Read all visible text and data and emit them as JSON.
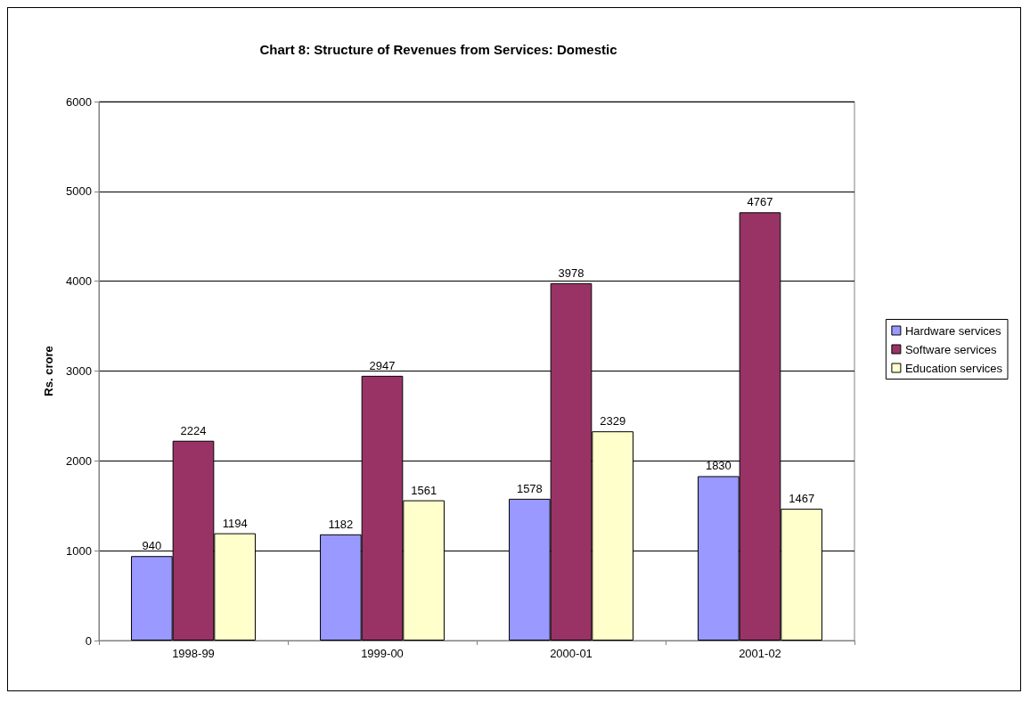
{
  "chart_data": {
    "type": "bar",
    "title": "Chart 8: Structure of Revenues from Services: Domestic",
    "ylabel": "Rs. crore",
    "categories": [
      "1998-99",
      "1999-00",
      "2000-01",
      "2001-02"
    ],
    "series": [
      {
        "name": "Hardware services",
        "color": "#9999ff",
        "values": [
          940,
          1182,
          1578,
          1830
        ]
      },
      {
        "name": "Software services",
        "color": "#993366",
        "values": [
          2224,
          2947,
          3978,
          4767
        ]
      },
      {
        "name": "Education services",
        "color": "#ffffcc",
        "values": [
          1194,
          1561,
          2329,
          1467
        ]
      }
    ],
    "ylim": [
      0,
      6000
    ],
    "yticks": [
      0,
      1000,
      2000,
      3000,
      4000,
      5000,
      6000
    ],
    "grid": "y",
    "legend": "right",
    "data_labels": true
  }
}
